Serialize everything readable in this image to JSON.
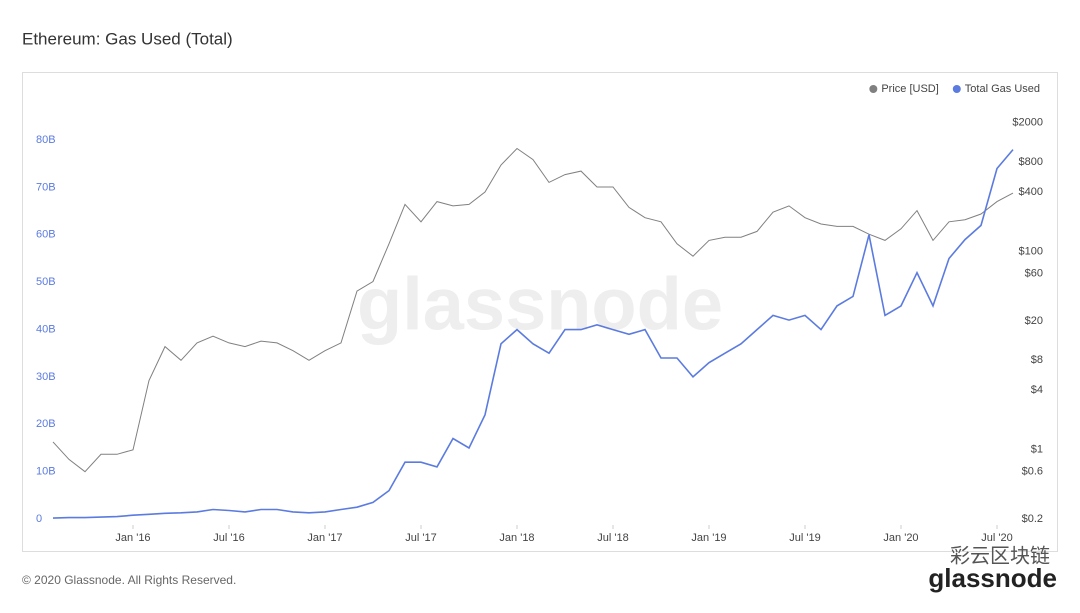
{
  "chart_data": {
    "type": "line",
    "title": "Ethereum: Gas Used (Total)",
    "watermark": "glassnode",
    "footer": "© 2020 Glassnode. All Rights Reserved.",
    "brand": "glassnode",
    "badge": "彩云区块链",
    "legend": "top-right",
    "y2log": true,
    "x": [
      "2015-08",
      "2015-09",
      "2015-10",
      "2015-11",
      "2015-12",
      "2016-01",
      "2016-02",
      "2016-03",
      "2016-04",
      "2016-05",
      "2016-06",
      "2016-07",
      "2016-08",
      "2016-09",
      "2016-10",
      "2016-11",
      "2016-12",
      "2017-01",
      "2017-02",
      "2017-03",
      "2017-04",
      "2017-05",
      "2017-06",
      "2017-07",
      "2017-08",
      "2017-09",
      "2017-10",
      "2017-11",
      "2017-12",
      "2018-01",
      "2018-02",
      "2018-03",
      "2018-04",
      "2018-05",
      "2018-06",
      "2018-07",
      "2018-08",
      "2018-09",
      "2018-10",
      "2018-11",
      "2018-12",
      "2019-01",
      "2019-02",
      "2019-03",
      "2019-04",
      "2019-05",
      "2019-06",
      "2019-07",
      "2019-08",
      "2019-09",
      "2019-10",
      "2019-11",
      "2019-12",
      "2020-01",
      "2020-02",
      "2020-03",
      "2020-04",
      "2020-05",
      "2020-06",
      "2020-07",
      "2020-08"
    ],
    "xlim": [
      "2015-08",
      "2020-08"
    ],
    "xticks": [
      {
        "value": "2016-01",
        "label": "Jan '16"
      },
      {
        "value": "2016-07",
        "label": "Jul '16"
      },
      {
        "value": "2017-01",
        "label": "Jan '17"
      },
      {
        "value": "2017-07",
        "label": "Jul '17"
      },
      {
        "value": "2018-01",
        "label": "Jan '18"
      },
      {
        "value": "2018-07",
        "label": "Jul '18"
      },
      {
        "value": "2019-01",
        "label": "Jan '19"
      },
      {
        "value": "2019-07",
        "label": "Jul '19"
      },
      {
        "value": "2020-01",
        "label": "Jan '20"
      },
      {
        "value": "2020-07",
        "label": "Jul '20"
      }
    ],
    "ylim": [
      0,
      89
    ],
    "yticks": [
      0,
      {
        "value": 10,
        "label": "10B"
      },
      {
        "value": 20,
        "label": "20B"
      },
      {
        "value": 30,
        "label": "30B"
      },
      {
        "value": 40,
        "label": "40B"
      },
      {
        "value": 50,
        "label": "50B"
      },
      {
        "value": 60,
        "label": "60B"
      },
      {
        "value": 70,
        "label": "70B"
      },
      {
        "value": 80,
        "label": "80B"
      }
    ],
    "y2lim": [
      0.2,
      3600
    ],
    "y2ticks": [
      {
        "value": 0.2,
        "label": "$0.2"
      },
      {
        "value": 0.6,
        "label": "$0.6"
      },
      {
        "value": 1,
        "label": "$1"
      },
      {
        "value": 4,
        "label": "$4"
      },
      {
        "value": 8,
        "label": "$8"
      },
      {
        "value": 20,
        "label": "$20"
      },
      {
        "value": 60,
        "label": "$60"
      },
      {
        "value": 100,
        "label": "$100"
      },
      {
        "value": 400,
        "label": "$400"
      },
      {
        "value": 800,
        "label": "$800"
      },
      {
        "value": 2000,
        "label": "$2000"
      }
    ],
    "series": [
      {
        "name": "Price [USD]",
        "color": "#808080",
        "axis": "y2",
        "values": [
          1.2,
          0.8,
          0.6,
          0.9,
          0.9,
          1,
          5,
          11,
          8,
          12,
          14,
          12,
          11,
          12.5,
          12,
          10,
          8,
          10,
          12,
          40,
          50,
          120,
          300,
          200,
          320,
          290,
          300,
          400,
          750,
          1100,
          850,
          500,
          600,
          650,
          450,
          450,
          280,
          220,
          200,
          120,
          90,
          130,
          140,
          140,
          160,
          250,
          290,
          220,
          190,
          180,
          180,
          150,
          130,
          170,
          260,
          130,
          200,
          210,
          240,
          320,
          390
        ]
      },
      {
        "name": "Total Gas Used",
        "color": "#5b7be0",
        "values": [
          0.2,
          0.3,
          0.3,
          0.4,
          0.5,
          0.8,
          1,
          1.2,
          1.3,
          1.5,
          2,
          1.8,
          1.5,
          2,
          2,
          1.5,
          1.3,
          1.5,
          2,
          2.5,
          3.5,
          6,
          12,
          12,
          11,
          17,
          15,
          22,
          37,
          40,
          37,
          35,
          40,
          40,
          41,
          40,
          39,
          40,
          34,
          34,
          30,
          33,
          35,
          37,
          40,
          43,
          42,
          43,
          40,
          45,
          47,
          60,
          43,
          45,
          52,
          45,
          55,
          59,
          62,
          74,
          78
        ]
      }
    ]
  }
}
